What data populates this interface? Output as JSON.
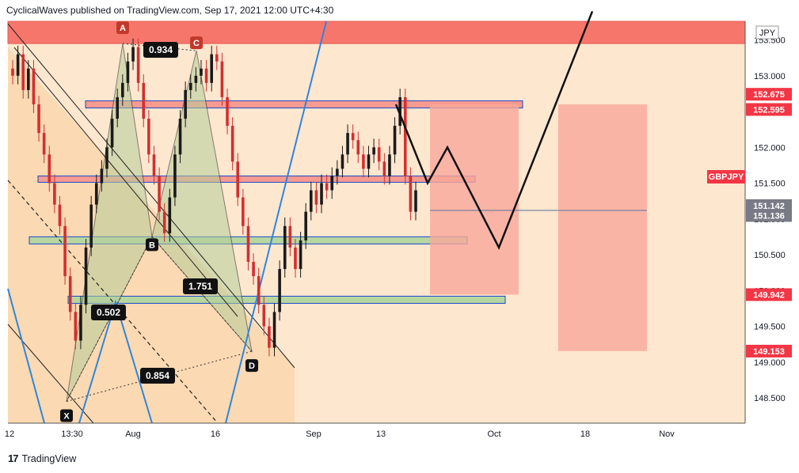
{
  "header": {
    "text": "CyclicalWaves published on TradingView.com, Sep 17, 2021 12:00 UTC+4:30"
  },
  "footer": {
    "logo": "17",
    "brand": "TradingView"
  },
  "chart_data": {
    "type": "candlestick",
    "symbol": "GBPJPY",
    "currency": "JPY",
    "y_ticks": [
      "148.500",
      "149.000",
      "149.500",
      "150.000",
      "150.500",
      "151.000",
      "151.500",
      "152.000",
      "152.500",
      "153.000",
      "153.500"
    ],
    "x_ticks": [
      "12",
      "13:30",
      "Aug",
      "16",
      "Sep",
      "13",
      "Oct",
      "18",
      "Nov"
    ],
    "ylim": [
      148.2,
      153.9
    ],
    "price_tags": [
      {
        "value": "152.675",
        "color": "#f23645"
      },
      {
        "value": "152.595",
        "color": "#f23645"
      },
      {
        "value": "151.142",
        "color": "#787b86"
      },
      {
        "value": "151.136",
        "color": "#787b86"
      },
      {
        "value": "149.942",
        "color": "#f23645"
      },
      {
        "value": "149.153",
        "color": "#f23645"
      }
    ],
    "pattern_points": [
      {
        "name": "X",
        "price": 148.45
      },
      {
        "name": "A",
        "price": 153.45
      },
      {
        "name": "B",
        "price": 150.75
      },
      {
        "name": "C",
        "price": 153.35
      },
      {
        "name": "D",
        "price": 149.15
      }
    ],
    "ratios": [
      "0.934",
      "1.751",
      "0.502",
      "0.854"
    ],
    "zones": [
      {
        "kind": "supply",
        "top": 153.9,
        "bottom": 153.45
      },
      {
        "kind": "resistance",
        "top": 152.65,
        "bottom": 152.55
      },
      {
        "kind": "resistance",
        "top": 151.6,
        "bottom": 151.52
      },
      {
        "kind": "support",
        "top": 150.75,
        "bottom": 150.65
      },
      {
        "kind": "support",
        "top": 149.92,
        "bottom": 149.82
      }
    ],
    "projection": [
      152.6,
      151.5,
      152.0,
      150.6,
      153.9
    ],
    "target_boxes": [
      {
        "top": 152.6,
        "bottom": 149.942
      },
      {
        "top": 152.6,
        "bottom": 149.153
      }
    ],
    "closes": [
      153.0,
      153.3,
      152.8,
      153.1,
      152.6,
      152.2,
      151.9,
      151.5,
      151.2,
      150.9,
      150.2,
      149.7,
      149.3,
      149.8,
      150.6,
      151.2,
      151.5,
      151.7,
      152.0,
      152.4,
      152.7,
      152.9,
      153.2,
      153.4,
      152.9,
      152.4,
      151.9,
      151.6,
      151.1,
      150.8,
      151.3,
      151.9,
      152.4,
      152.8,
      152.9,
      153.0,
      153.1,
      152.9,
      153.3,
      153.2,
      152.7,
      152.3,
      151.8,
      151.3,
      150.9,
      150.4,
      150.2,
      149.8,
      149.5,
      149.2,
      149.7,
      150.3,
      150.9,
      150.6,
      150.3,
      150.7,
      151.1,
      151.4,
      151.2,
      151.5,
      151.4,
      151.6,
      151.7,
      151.9,
      152.2,
      152.1,
      151.9,
      151.7,
      151.9,
      152.0,
      151.8,
      151.6,
      151.9,
      152.3,
      152.7,
      151.6,
      151.1,
      151.4
    ]
  }
}
